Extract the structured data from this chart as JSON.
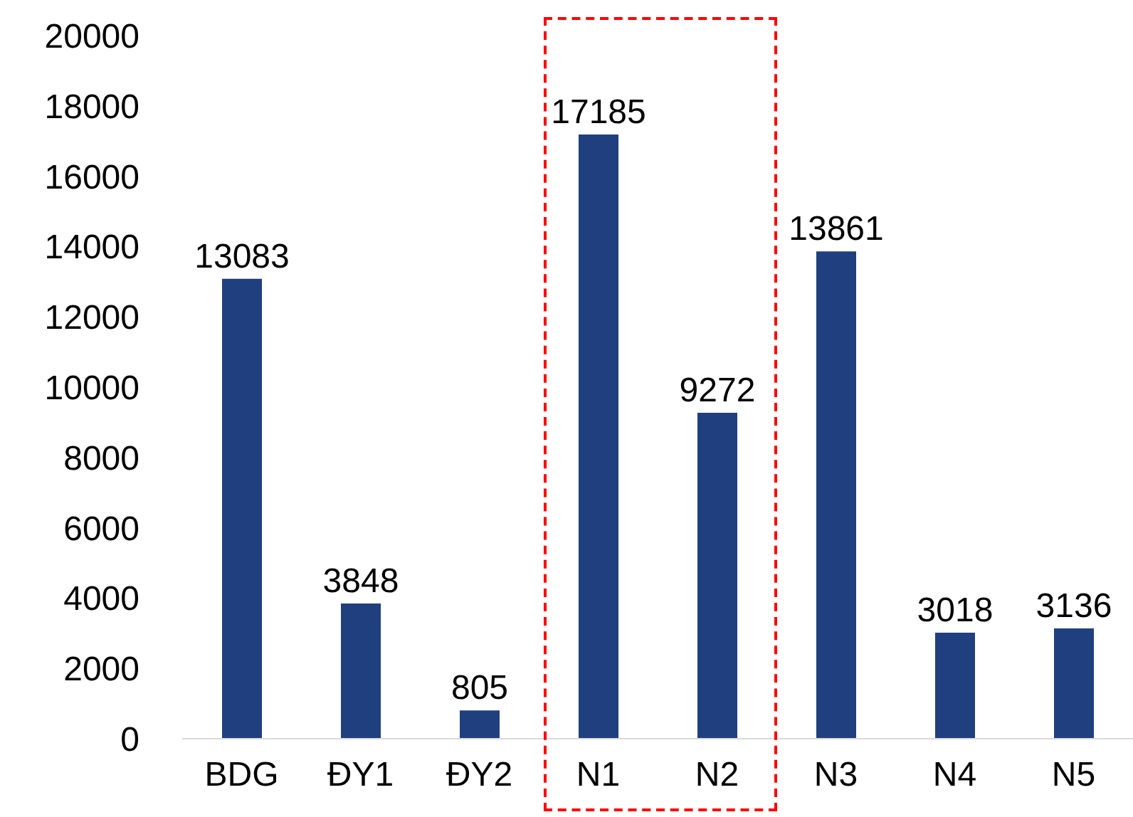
{
  "chart_data": {
    "type": "bar",
    "categories": [
      "BDG",
      "ĐY1",
      "ĐY2",
      "N1",
      "N2",
      "N3",
      "N4",
      "N5"
    ],
    "values": [
      13083,
      3848,
      805,
      17185,
      9272,
      13861,
      3018,
      3136
    ],
    "color": "#203f7f",
    "ylim": [
      0,
      20000
    ],
    "yticks": [
      0,
      2000,
      4000,
      6000,
      8000,
      10000,
      12000,
      14000,
      16000,
      18000,
      20000
    ],
    "grid": false,
    "legend": false,
    "data_labels": true
  }
}
